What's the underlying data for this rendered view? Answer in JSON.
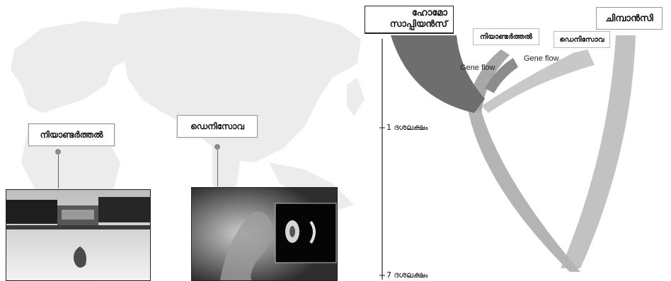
{
  "map": {
    "neanderthal_label": "നിയാണ്ടർത്തൽ",
    "denisova_label": "ഡെനിസോവ"
  },
  "tree": {
    "homo_sapiens_line1": "ഹോമോ",
    "homo_sapiens_line2": "സാപ്പിയൻസ്",
    "neanderthal_label": "നിയാണ്ടർത്തൽ",
    "denisova_label": "ഡെനിസോവ",
    "chimp_label": "ചിമ്പാൻസി",
    "gene_flow_1": "Gene flow",
    "gene_flow_2": "Gene flow",
    "time_1": "1 ദശലക്ഷം",
    "time_2": "7 ദശലക്ഷം"
  },
  "colors": {
    "map_land": "#ececec",
    "sapiens_branch": "#6e6e6e",
    "archaic_branch": "#a8a8a8",
    "chimp_branch": "#c2c2c2"
  }
}
